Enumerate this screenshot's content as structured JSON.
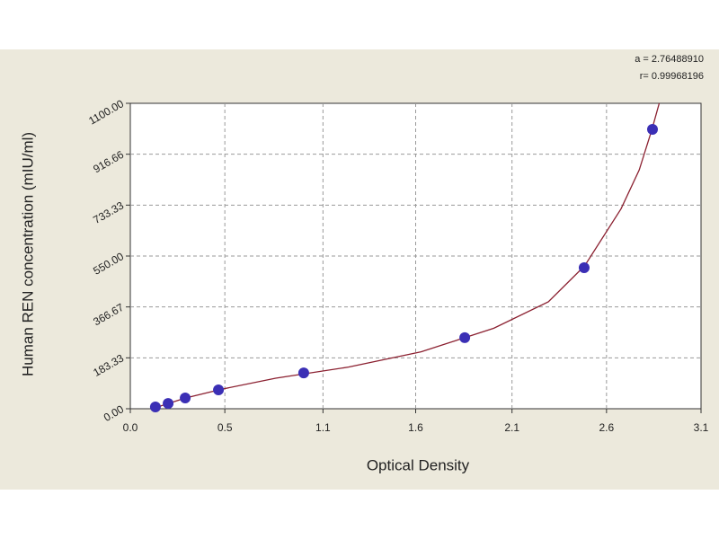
{
  "chart_data": {
    "type": "scatter",
    "x_label": "Optical Density",
    "y_label": "Human REN concentration (mIU/ml)",
    "annotations": [
      "a = 2.76488910",
      "r= 0.99968196"
    ],
    "x": [
      0.138,
      0.208,
      0.302,
      0.485,
      0.954,
      1.84,
      2.497,
      2.873
    ],
    "values": [
      6.5,
      19,
      39,
      68,
      129,
      256,
      508,
      1006
    ],
    "color": "#3b2fb5",
    "fit_curve": {
      "color": "#8b2030",
      "x": [
        0.12,
        0.3,
        0.5,
        0.8,
        1.2,
        1.6,
        2.0,
        2.3,
        2.5,
        2.7,
        2.8,
        2.87,
        2.91
      ],
      "values": [
        0,
        38,
        70,
        110,
        150,
        205,
        290,
        385,
        515,
        720,
        860,
        1006,
        1100
      ]
    },
    "xlim": [
      0,
      3.14
    ],
    "xticks": [
      {
        "value": 0,
        "label": "0.0"
      },
      {
        "value": 0.52,
        "label": "0.5"
      },
      {
        "value": 1.06,
        "label": "1.1"
      },
      {
        "value": 1.57,
        "label": "1.6"
      },
      {
        "value": 2.1,
        "label": "2.1"
      },
      {
        "value": 2.62,
        "label": "2.6"
      },
      {
        "value": 3.14,
        "label": "3.1"
      }
    ],
    "ylim": [
      0,
      1100
    ],
    "yticks": [
      {
        "value": 0,
        "label": "0.00"
      },
      {
        "value": 183.33,
        "label": "183.33"
      },
      {
        "value": 366.67,
        "label": "366.67"
      },
      {
        "value": 550,
        "label": "550.00"
      },
      {
        "value": 733.33,
        "label": "733.33"
      },
      {
        "value": 916.66,
        "label": "916.66"
      },
      {
        "value": 1100,
        "label": "1100.00"
      }
    ],
    "grid": true
  }
}
